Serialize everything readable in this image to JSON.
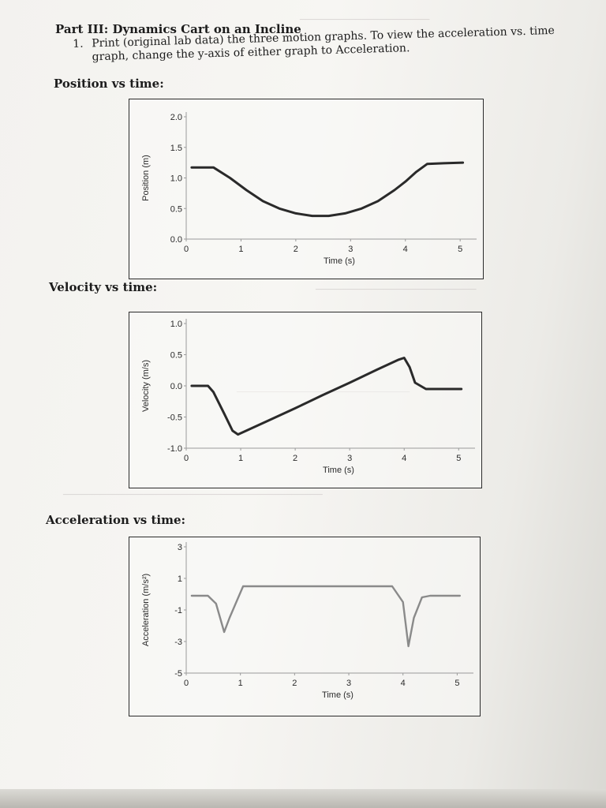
{
  "header": {
    "part_title": "Part III: Dynamics Cart on an Incline",
    "step_number": "1.",
    "step_text": "Print (original lab data) the three motion graphs. To view the acceleration vs. time graph, change the y-axis of either graph to Acceleration."
  },
  "sections": {
    "position": "Position vs time:",
    "velocity": "Velocity vs time:",
    "acceleration": "Acceleration vs time:"
  },
  "colors": {
    "position_line": "#2a2a2a",
    "velocity_line": "#2a2a2a",
    "acceleration_line": "#8a8a8a"
  },
  "chart_data": [
    {
      "id": "position",
      "type": "line",
      "xlabel": "Time (s)",
      "ylabel": "Position (m)",
      "xlim": [
        0,
        5.3
      ],
      "ylim": [
        0,
        2.0
      ],
      "xticks": [
        "0",
        "1",
        "2",
        "3",
        "4",
        "5"
      ],
      "yticks": [
        "2.0",
        "1.5",
        "1.0",
        "0.5",
        "0.0"
      ],
      "ytick_values": [
        2.0,
        1.5,
        1.0,
        0.5,
        0.0
      ],
      "x": [
        0.1,
        0.3,
        0.5,
        0.8,
        1.1,
        1.4,
        1.7,
        2.0,
        2.3,
        2.6,
        2.9,
        3.2,
        3.5,
        3.8,
        4.0,
        4.2,
        4.4,
        4.7,
        5.05
      ],
      "y": [
        1.17,
        1.17,
        1.17,
        1.0,
        0.8,
        0.62,
        0.5,
        0.42,
        0.38,
        0.38,
        0.42,
        0.5,
        0.62,
        0.8,
        0.94,
        1.1,
        1.23,
        1.24,
        1.25
      ]
    },
    {
      "id": "velocity",
      "type": "line",
      "xlabel": "Time (s)",
      "ylabel": "Velocity (m/s)",
      "xlim": [
        0,
        5.3
      ],
      "ylim": [
        -1.0,
        1.0
      ],
      "xticks": [
        "0",
        "1",
        "2",
        "3",
        "4",
        "5"
      ],
      "yticks": [
        "1.0",
        "0.5",
        "0.0",
        "-0.5",
        "-1.0"
      ],
      "ytick_values": [
        1.0,
        0.5,
        0.0,
        -0.5,
        -1.0
      ],
      "x": [
        0.1,
        0.4,
        0.5,
        0.7,
        0.85,
        0.95,
        1.1,
        1.5,
        2.0,
        2.5,
        3.0,
        3.5,
        3.9,
        4.0,
        4.1,
        4.2,
        4.4,
        4.7,
        5.05
      ],
      "y": [
        0.0,
        0.0,
        -0.1,
        -0.45,
        -0.72,
        -0.78,
        -0.72,
        -0.56,
        -0.36,
        -0.15,
        0.05,
        0.26,
        0.42,
        0.45,
        0.3,
        0.05,
        -0.05,
        -0.05,
        -0.05
      ]
    },
    {
      "id": "acceleration",
      "type": "line",
      "xlabel": "Time (s)",
      "ylabel": "Acceleration (m/s²)",
      "xlim": [
        0,
        5.3
      ],
      "ylim": [
        -5,
        3
      ],
      "xticks": [
        "0",
        "1",
        "2",
        "3",
        "4",
        "5"
      ],
      "yticks": [
        "3",
        "1",
        "-1",
        "-3",
        "-5"
      ],
      "ytick_values": [
        3,
        1,
        -1,
        -3,
        -5
      ],
      "x": [
        0.1,
        0.4,
        0.55,
        0.7,
        0.8,
        0.95,
        1.05,
        1.2,
        2.0,
        3.0,
        3.8,
        4.0,
        4.1,
        4.2,
        4.35,
        4.5,
        4.7,
        5.05
      ],
      "y": [
        -0.1,
        -0.1,
        -0.6,
        -2.4,
        -1.5,
        -0.3,
        0.5,
        0.5,
        0.5,
        0.5,
        0.5,
        -0.5,
        -3.3,
        -1.5,
        -0.2,
        -0.1,
        -0.1,
        -0.1
      ]
    }
  ]
}
